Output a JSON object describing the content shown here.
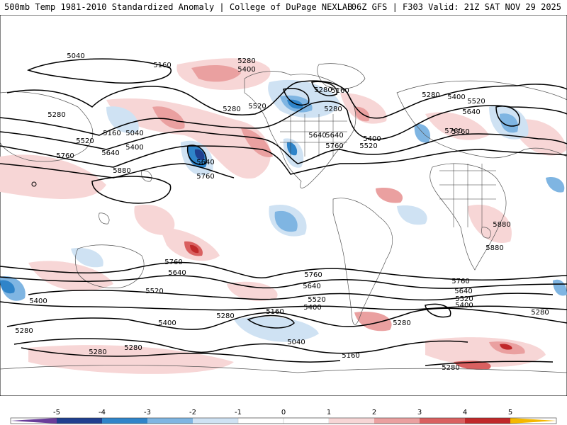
{
  "header": {
    "title_left": "500mb Temp 1981-2010 Standardized Anomaly | College of DuPage NEXLAB",
    "title_right": "06Z GFS | F303 Valid: 21Z SAT NOV 29 2025"
  },
  "colors": {
    "neg5": "#6a3d9a",
    "neg4": "#1f3f8f",
    "neg3": "#2f84c9",
    "neg2": "#7fb5e2",
    "neg1": "#cfe2f3",
    "zero": "#ffffff",
    "pos1": "#f7d6d6",
    "pos2": "#eaa0a0",
    "pos3": "#d96060",
    "pos4": "#c0282a",
    "pos5": "#7a0a10",
    "pos6": "#f5b800"
  },
  "colorbar": {
    "ticks": [
      "-5",
      "-4",
      "-3",
      "-2",
      "-1",
      "0",
      "1",
      "2",
      "3",
      "4",
      "5"
    ]
  },
  "contour_labels": {
    "a": "5040",
    "b": "5160",
    "c": "5280",
    "d": "5400",
    "e": "5280",
    "f": "5160",
    "g": "5280",
    "h": "5280",
    "i": "5400",
    "j": "5520",
    "k": "5640",
    "l": "5760",
    "m": "5280",
    "n": "5160",
    "o": "5040",
    "p": "5520",
    "q": "5400",
    "r": "5640",
    "s": "5760",
    "t": "5880",
    "u": "5640",
    "v": "5760",
    "w": "5520",
    "x": "5640",
    "y": "5760",
    "z": "5160",
    "aa": "5520",
    "ab": "5400",
    "ac": "5760",
    "ad": "5880",
    "ae": "5880",
    "af": "5760",
    "ag": "5640",
    "ah": "5400",
    "ai": "5520",
    "aj": "5280",
    "ak": "5160",
    "al": "5400",
    "am": "5280",
    "an": "5040",
    "ao": "5280",
    "ap": "5280",
    "aq": "5760",
    "ar": "5640",
    "as": "5520",
    "at": "5400",
    "au": "5280",
    "av": "5160",
    "aw": "5400",
    "ax": "5520",
    "ay": "5640",
    "az": "5760",
    "ba": "5280",
    "bb": "5280"
  }
}
